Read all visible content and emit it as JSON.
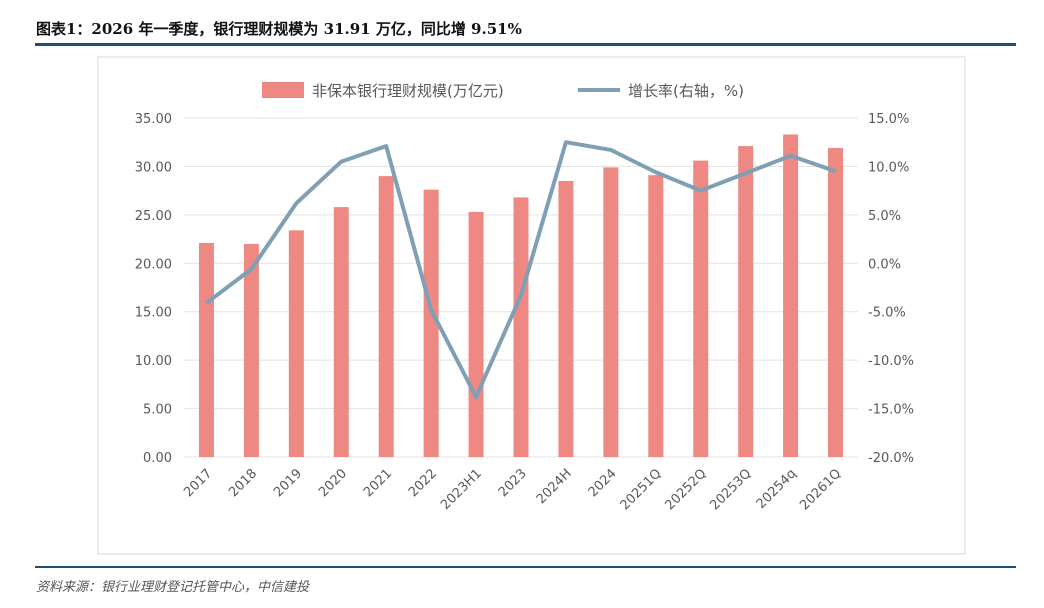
{
  "title": "图表1：2026 年一季度，银行理财规模为 31.91 万亿，同比增 9.51%",
  "source": "资料来源：银行业理财登记托管中心，中信建投",
  "chart_data": {
    "type": "bar+line",
    "categories": [
      "2017",
      "2018",
      "2019",
      "2020",
      "2021",
      "2022",
      "2023H1",
      "2023",
      "2024H",
      "2024",
      "20251Q",
      "20252Q",
      "20253Q",
      "20254q",
      "20261Q"
    ],
    "series": [
      {
        "name": "非保本银行理财规模(万亿元)",
        "type": "bar",
        "axis": "left",
        "color": "#ee8883",
        "values": [
          22.1,
          22.0,
          23.4,
          25.8,
          29.0,
          27.6,
          25.3,
          26.8,
          28.5,
          29.9,
          29.1,
          30.6,
          32.1,
          33.3,
          31.91
        ]
      },
      {
        "name": "增长率(右轴，%)",
        "type": "line",
        "axis": "right",
        "color": "#7f9fb5",
        "values": [
          -4.1,
          -0.6,
          6.2,
          10.5,
          12.1,
          -4.8,
          -13.8,
          -3.3,
          12.5,
          11.7,
          9.4,
          7.5,
          9.3,
          11.1,
          9.51
        ]
      }
    ],
    "left_axis": {
      "range": [
        0,
        35
      ],
      "ticks": [
        "0.00",
        "5.00",
        "10.00",
        "15.00",
        "20.00",
        "25.00",
        "30.00",
        "35.00"
      ]
    },
    "right_axis": {
      "range": [
        -20,
        15
      ],
      "ticks": [
        "-20.0%",
        "-15.0%",
        "-10.0%",
        "-5.0%",
        "0.0%",
        "5.0%",
        "10.0%",
        "15.0%"
      ]
    },
    "grid": true,
    "legend_position": "top"
  }
}
